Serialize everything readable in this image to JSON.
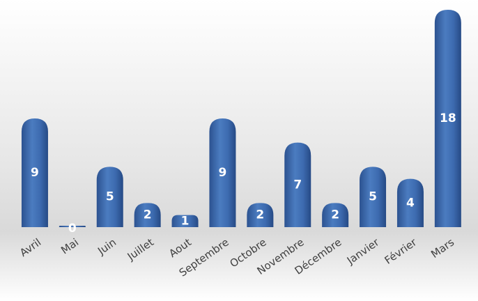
{
  "chart_data": {
    "type": "bar",
    "categories": [
      "Avril",
      "Mai",
      "Juin",
      "Juillet",
      "Aout",
      "Septembre",
      "Octobre",
      "Novembre",
      "Décembre",
      "Janvier",
      "Février",
      "Mars"
    ],
    "values": [
      9,
      0,
      5,
      2,
      1,
      9,
      2,
      7,
      2,
      5,
      4,
      18
    ],
    "data_labels": [
      "9",
      "0",
      "5",
      "2",
      "1",
      "9",
      "2",
      "7",
      "2",
      "5",
      "4",
      "18"
    ],
    "title": "",
    "xlabel": "",
    "ylabel": "",
    "ylim": [
      0,
      18
    ],
    "grid": false,
    "legend": "none",
    "bar_color": "#3a68ad",
    "background": "gradient-gray",
    "label_color": "#ffffff"
  }
}
